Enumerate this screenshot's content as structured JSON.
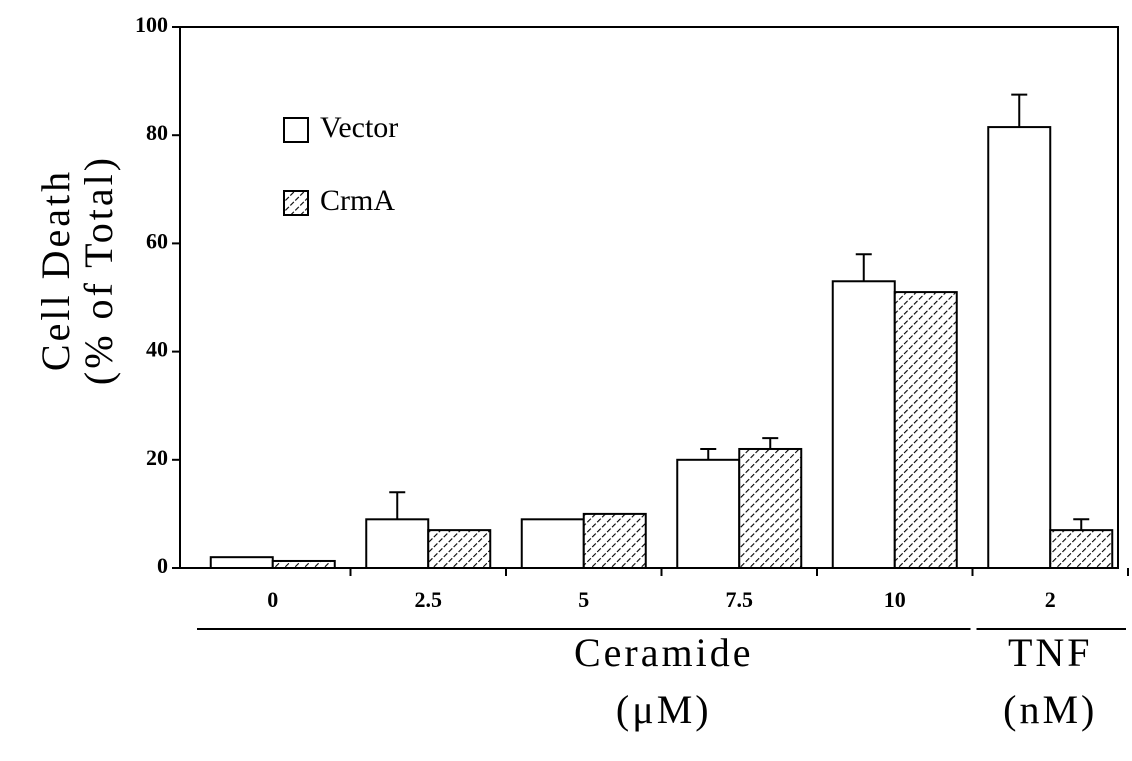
{
  "chart_data": {
    "type": "bar",
    "y_label": [
      "Cell Death",
      "(% of Total)"
    ],
    "groups": [
      {
        "label": "Ceramide",
        "unit": "(μM)",
        "categories": [
          "0",
          "2.5",
          "5",
          "7.5",
          "10"
        ]
      },
      {
        "label": "TNF",
        "unit": "(nM)",
        "categories": [
          "2"
        ]
      }
    ],
    "series": [
      {
        "name": "Vector",
        "color": "#ffffff",
        "hatch": false,
        "values": [
          2,
          9,
          9,
          20,
          53,
          81.5
        ],
        "errors": [
          null,
          5,
          null,
          2,
          5,
          6
        ]
      },
      {
        "name": "CrmA",
        "color": "#ffffff",
        "hatch": true,
        "values": [
          1.3,
          7,
          10,
          22,
          51,
          7
        ],
        "errors": [
          null,
          null,
          null,
          2,
          null,
          2
        ]
      }
    ],
    "ylim": [
      0,
      100
    ],
    "yticks": [
      0,
      20,
      40,
      60,
      80,
      100
    ],
    "legend": "upper-left"
  }
}
